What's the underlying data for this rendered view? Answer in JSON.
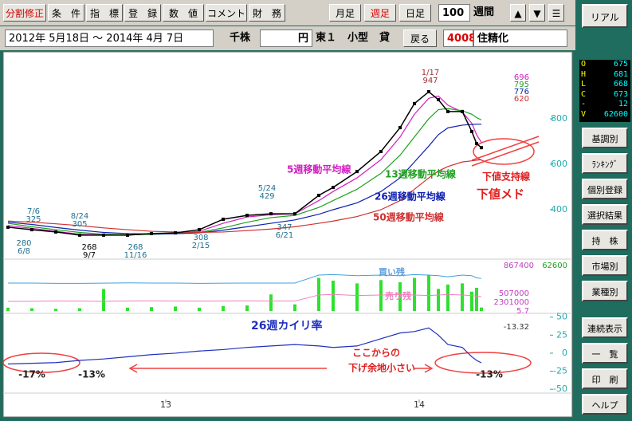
{
  "toolbar": {
    "buttons": [
      "分割修正",
      "条　件",
      "指　標",
      "登　録",
      "数　値",
      "コメント",
      "財　務"
    ],
    "periods": [
      "月足",
      "週足",
      "日足"
    ],
    "count": "100",
    "unit": "週間",
    "nav": [
      "▲",
      "▼",
      "☰"
    ]
  },
  "header": {
    "range": "2012年 5月18日 〜 2014年 4月 7日",
    "share_unit": "千株",
    "currency": "円",
    "market": "東１",
    "size": "小型",
    "lending": "貸",
    "back": "戻る",
    "code": "4008",
    "name": "住精化"
  },
  "side": {
    "realtime": "リアル",
    "quote": [
      {
        "key": "O",
        "value": 675
      },
      {
        "key": "H",
        "value": 681
      },
      {
        "key": "L",
        "value": 668
      },
      {
        "key": "C",
        "value": 673
      },
      {
        "key": "-",
        "value": 12
      },
      {
        "key": "V",
        "value": 62600
      }
    ],
    "buttons": [
      "基調別",
      "ﾗﾝｷﾝｸﾞ",
      "個別登録",
      "選択結果",
      "持　株",
      "市場別",
      "業種別",
      "連続表示",
      "一　覧",
      "印　刷",
      "ヘルプ"
    ]
  },
  "chart": {
    "x": [
      0,
      5,
      10,
      15,
      20,
      25,
      30,
      35,
      40,
      45,
      50,
      55,
      60,
      65,
      68,
      73,
      78,
      82,
      85,
      88,
      90,
      92,
      95,
      97,
      98,
      99
    ],
    "xlim": [
      0,
      113
    ],
    "xticks": [
      {
        "value": 33,
        "label": "13"
      },
      {
        "value": 86,
        "label": "14"
      }
    ],
    "price": {
      "ylim": [
        200,
        1077
      ],
      "yticks": [
        400,
        600,
        800
      ],
      "close": [
        323,
        312,
        302,
        288,
        288,
        288,
        295,
        298,
        312,
        358,
        375,
        382,
        382,
        463,
        498,
        568,
        656,
        761,
        867,
        919,
        884,
        832,
        832,
        744,
        691,
        673
      ],
      "ma": [
        {
          "name": "5週移動平均線",
          "color": "#d020c0",
          "values": [
            330,
            318,
            305,
            292,
            289,
            289,
            293,
            297,
            305,
            340,
            368,
            378,
            382,
            440,
            480,
            540,
            620,
            720,
            820,
            890,
            900,
            860,
            830,
            780,
            730,
            696
          ]
        },
        {
          "name": "13週移動平均線",
          "color": "#20a020",
          "values": [
            340,
            325,
            312,
            300,
            292,
            290,
            291,
            295,
            300,
            320,
            345,
            365,
            375,
            410,
            440,
            490,
            560,
            640,
            720,
            800,
            840,
            845,
            835,
            820,
            805,
            795
          ]
        },
        {
          "name": "26週移動平均線",
          "color": "#1020b0",
          "values": [
            345,
            335,
            322,
            310,
            300,
            295,
            293,
            294,
            298,
            310,
            325,
            340,
            355,
            380,
            400,
            430,
            480,
            540,
            610,
            680,
            730,
            760,
            772,
            775,
            776,
            776
          ]
        },
        {
          "name": "50週移動平均線",
          "color": "#d03030",
          "values": [
            350,
            345,
            338,
            330,
            320,
            312,
            305,
            302,
            300,
            302,
            308,
            315,
            325,
            340,
            350,
            370,
            400,
            440,
            490,
            540,
            570,
            590,
            610,
            615,
            618,
            620
          ]
        }
      ],
      "annotations": [
        {
          "date": "1/17",
          "price": 947
        },
        {
          "date": "7/6",
          "price": 325
        },
        {
          "date": "8/24",
          "price": 305
        },
        {
          "date": "6/8",
          "price": 280
        },
        {
          "date": "9/7",
          "price": 268
        },
        {
          "date": "11/16",
          "price": 268
        },
        {
          "date": "5/24",
          "price": 429
        },
        {
          "date": "2/15",
          "price": 308
        },
        {
          "date": "6/21",
          "price": 347
        }
      ],
      "support_label": "下値支持線",
      "target_label": "下値メド"
    },
    "volume": {
      "ylim": [
        0,
        867400
      ],
      "color": "#30e030",
      "values": [
        60000,
        50000,
        40000,
        50000,
        400000,
        60000,
        70000,
        80000,
        60000,
        90000,
        100000,
        300000,
        120000,
        600000,
        550000,
        500000,
        560000,
        520000,
        600000,
        650000,
        400000,
        480000,
        500000,
        350000,
        420000,
        62600
      ],
      "buy_name": "買い残",
      "buy": [
        506000,
        506000,
        500000,
        500000,
        505000,
        510000,
        506000,
        506000,
        500000,
        505000,
        506000,
        506000,
        506000,
        650000,
        660000,
        640000,
        650000,
        640000,
        660000,
        650000,
        640000,
        620000,
        650000,
        640000,
        600000,
        590000
      ],
      "sell_name": "売り残",
      "sell": [
        173000,
        175000,
        180000,
        178000,
        176000,
        180000,
        182000,
        180000,
        178000,
        180000,
        182000,
        180000,
        180000,
        290000,
        300000,
        280000,
        290000,
        300000,
        289000,
        280000,
        290000,
        300000,
        289000,
        280000,
        270000,
        260000
      ],
      "labels": [
        "507000",
        "2301000",
        "5.7"
      ]
    },
    "deviation": {
      "title": "26週カイリ率",
      "ylim": [
        -52,
        53
      ],
      "yticks": [
        50,
        25,
        0,
        -25,
        -50
      ],
      "color": "#2030c0",
      "values": [
        -15,
        -14,
        -13,
        -10,
        -8,
        -5,
        -2,
        0,
        3,
        5,
        8,
        10,
        12,
        10,
        8,
        10,
        20,
        28,
        30,
        35,
        25,
        12,
        8,
        -5,
        -10,
        -13.32
      ],
      "notes": [
        "ここからの",
        "下げ余地小さい"
      ],
      "marks": [
        "-17%",
        "-13%",
        "-13%"
      ]
    }
  }
}
